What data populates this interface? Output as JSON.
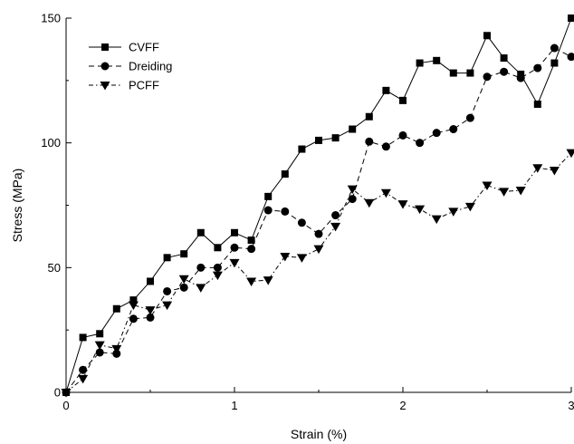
{
  "chart_data": {
    "type": "line",
    "title": "",
    "xlabel": "Strain (%)",
    "ylabel": "Stress (MPa)",
    "xlim": [
      0,
      3
    ],
    "ylim": [
      0,
      150
    ],
    "xticks": [
      0,
      1,
      2,
      3
    ],
    "yticks": [
      0,
      50,
      100,
      150
    ],
    "grid": false,
    "legend_position": "top-left",
    "series": [
      {
        "name": "CVFF",
        "marker": "square",
        "line_style": "solid",
        "color": "#000000",
        "x": [
          0,
          0.1,
          0.2,
          0.3,
          0.4,
          0.5,
          0.6,
          0.7,
          0.8,
          0.9,
          1.0,
          1.1,
          1.2,
          1.3,
          1.4,
          1.5,
          1.6,
          1.7,
          1.8,
          1.9,
          2.0,
          2.1,
          2.2,
          2.3,
          2.4,
          2.5,
          2.6,
          2.7,
          2.8,
          2.9,
          3.0
        ],
        "y": [
          0,
          22,
          23.5,
          33.5,
          37,
          44.5,
          54,
          55.5,
          64,
          58,
          64,
          61,
          78.5,
          87.5,
          97.5,
          101,
          102,
          105.5,
          110.5,
          121,
          117,
          132,
          133,
          128,
          128,
          143,
          134,
          127.5,
          115.5,
          132,
          150
        ]
      },
      {
        "name": "Dreiding",
        "marker": "circle",
        "line_style": "dashed",
        "color": "#000000",
        "x": [
          0,
          0.1,
          0.2,
          0.3,
          0.4,
          0.5,
          0.6,
          0.7,
          0.8,
          0.9,
          1.0,
          1.1,
          1.2,
          1.3,
          1.4,
          1.5,
          1.6,
          1.7,
          1.8,
          1.9,
          2.0,
          2.1,
          2.2,
          2.3,
          2.4,
          2.5,
          2.6,
          2.7,
          2.8,
          2.9,
          3.0
        ],
        "y": [
          0,
          9,
          16,
          15.5,
          29.5,
          30,
          40.5,
          42,
          50,
          50,
          58,
          57.5,
          73,
          72.5,
          68,
          63.5,
          71,
          77.5,
          100.5,
          98.5,
          103,
          100,
          104,
          105.5,
          110,
          126.5,
          128.5,
          126,
          130,
          138,
          134.5
        ]
      },
      {
        "name": "PCFF",
        "marker": "triangle-down",
        "line_style": "dash-dot",
        "color": "#000000",
        "x": [
          0,
          0.1,
          0.2,
          0.3,
          0.4,
          0.5,
          0.6,
          0.7,
          0.8,
          0.9,
          1.0,
          1.1,
          1.2,
          1.3,
          1.4,
          1.5,
          1.6,
          1.7,
          1.8,
          1.9,
          2.0,
          2.1,
          2.2,
          2.3,
          2.4,
          2.5,
          2.6,
          2.7,
          2.8,
          2.9,
          3.0
        ],
        "y": [
          0,
          5.5,
          19,
          17.5,
          35,
          33,
          35,
          45.5,
          42,
          47,
          52,
          44.5,
          45,
          54.5,
          54,
          57.5,
          66.5,
          81.5,
          76,
          80,
          75.5,
          73.5,
          69.5,
          72.5,
          74.5,
          83,
          80.5,
          81,
          90,
          89,
          96
        ]
      }
    ]
  }
}
